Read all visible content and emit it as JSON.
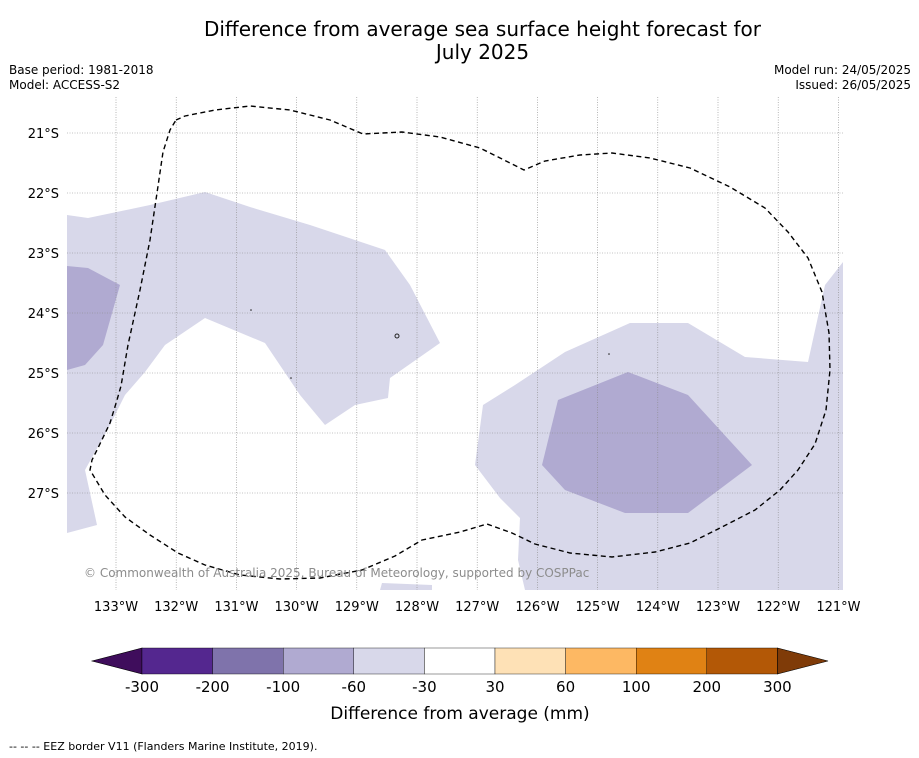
{
  "title": "Difference from average sea surface height forecast for July 2025",
  "title_line1": "Difference from average sea surface height forecast for",
  "title_line2": "July 2025",
  "left_meta": [
    "Base period: 1981-2018",
    "Model: ACCESS-S2"
  ],
  "right_meta": [
    "Model run: 24/05/2025",
    "Issued: 26/05/2025"
  ],
  "copyright": "© Commonwealth of Australia 2025, Bureau of Meteorology, supported by COSPPac",
  "lat_labels": [
    "21°S",
    "22°S",
    "23°S",
    "24°S",
    "25°S",
    "26°S",
    "27°S"
  ],
  "lon_labels": [
    "133°W",
    "132°W",
    "131°W",
    "130°W",
    "129°W",
    "128°W",
    "127°W",
    "126°W",
    "125°W",
    "124°W",
    "123°W",
    "122°W",
    "121°W"
  ],
  "colorbar": {
    "title": "Difference from average (mm)",
    "tick_labels": [
      "-300",
      "-200",
      "-100",
      "-60",
      "-30",
      "30",
      "60",
      "100",
      "200",
      "300"
    ],
    "colors": [
      "#3f0d5c",
      "#54278f",
      "#7f73ab",
      "#b0aad1",
      "#d8d8ea",
      "#ffffff",
      "#fee1b6",
      "#fdb863",
      "#e08214",
      "#b35806",
      "#7f3b08"
    ]
  },
  "footer": "--  --  -- EEZ border V11 (Flanders Marine Institute, 2019).",
  "map_data": {
    "extent_lon": [
      "133.8°W",
      "120.9°W"
    ],
    "extent_lat": [
      "20.6°S",
      "28.6°S"
    ],
    "colors": {
      "light": "#d8d8ea",
      "medium": "#b0aad1"
    }
  }
}
